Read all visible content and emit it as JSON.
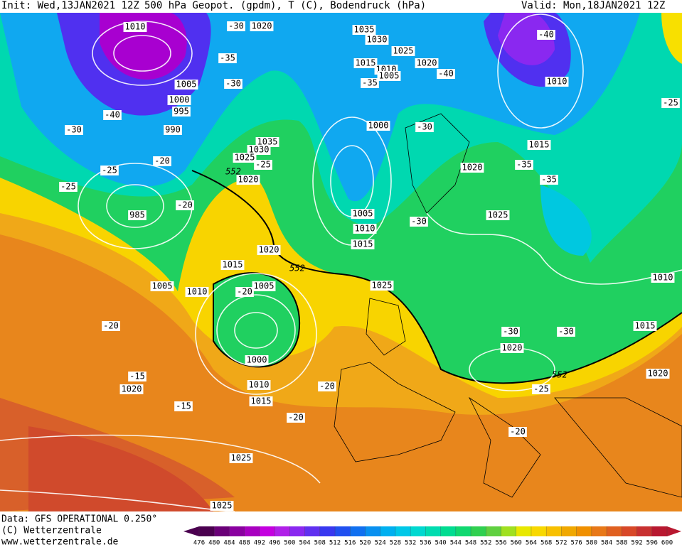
{
  "header": {
    "init": "Init: Wed,13JAN2021 12Z",
    "title": "500 hPa Geopot. (gpdm), T (C), Bodendruck (hPa)",
    "valid": "Valid: Mon,18JAN2021 12Z"
  },
  "footer": {
    "data": "Data: GFS OPERATIONAL 0.250°",
    "copyright": "(C) Wetterzentrale",
    "url": "www.wetterzentrale.de"
  },
  "map": {
    "isobar_labels": [
      "1010",
      "1020",
      "1035",
      "1030",
      "1025",
      "1015",
      "1010",
      "1020",
      "1005",
      "1010",
      "1005",
      "1000",
      "995",
      "990",
      "1000",
      "1015",
      "1035",
      "1030",
      "1025",
      "1020",
      "1020",
      "985",
      "1005",
      "1010",
      "1015",
      "1025",
      "1020",
      "1015",
      "1005",
      "1010",
      "1005",
      "1025",
      "1010",
      "1015",
      "1000",
      "1020",
      "1020",
      "1010",
      "1020",
      "1015",
      "1025",
      "1025"
    ],
    "temperature_labels": [
      "-30",
      "-35",
      "-30",
      "-40",
      "-30",
      "-20",
      "-25",
      "-25",
      "-25",
      "-20",
      "-35",
      "-40",
      "-40",
      "-30",
      "-35",
      "-35",
      "-25",
      "-30",
      "-20",
      "-20",
      "-15",
      "-15",
      "-20",
      "-20",
      "-30",
      "-30",
      "-25",
      "-20"
    ],
    "geopotential_labels": [
      "552",
      "552",
      "552"
    ]
  },
  "colorbar": {
    "ticks": [
      476,
      480,
      484,
      488,
      492,
      496,
      500,
      504,
      508,
      512,
      516,
      520,
      524,
      528,
      532,
      536,
      540,
      544,
      548,
      552,
      556,
      560,
      564,
      568,
      572,
      576,
      580,
      584,
      588,
      592,
      596,
      600
    ],
    "colors": [
      "#4b0050",
      "#6a0078",
      "#8a00a0",
      "#a800c0",
      "#c400e0",
      "#b020e8",
      "#8a28f0",
      "#6030f0",
      "#3838f0",
      "#2050f0",
      "#1070f0",
      "#0890f0",
      "#00b0f0",
      "#00c8e8",
      "#00d8d0",
      "#00dcb0",
      "#00dc90",
      "#10d870",
      "#30d050",
      "#60d040",
      "#a0e020",
      "#e8e800",
      "#f8d800",
      "#f8c000",
      "#f0a800",
      "#f09000",
      "#e87818",
      "#e06020",
      "#d84828",
      "#c83030",
      "#b81830"
    ]
  }
}
